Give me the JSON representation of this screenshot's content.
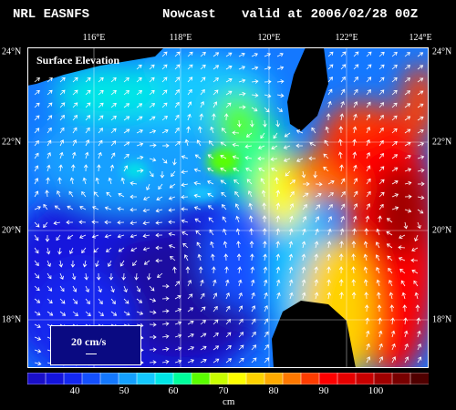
{
  "header": {
    "left": "NRL EASNFS",
    "middle": "Nowcast",
    "right": "valid at 2006/02/28 00Z"
  },
  "map": {
    "panel_label": "Surface Elevation",
    "lon_labels": [
      "116°E",
      "118°E",
      "120°E",
      "122°E",
      "124°E"
    ],
    "lat_labels": [
      "24°N",
      "22°N",
      "20°N",
      "18°N"
    ],
    "lon_range": [
      114.2,
      124
    ],
    "lat_range": [
      16.8,
      24
    ],
    "scale_label": "20 cm/s",
    "land_color": "#000000"
  },
  "colorbar": {
    "tick_labels": [
      "40",
      "50",
      "60",
      "70",
      "80",
      "90",
      "100"
    ],
    "unit": "cm",
    "range": [
      30,
      110
    ],
    "colors": [
      "#1a0fc8",
      "#1414dc",
      "#1428f0",
      "#1450ff",
      "#1478ff",
      "#14a0ff",
      "#14c8ff",
      "#00e6e6",
      "#00ff9c",
      "#5aff00",
      "#c8ff00",
      "#ffff00",
      "#ffd200",
      "#ffaa00",
      "#ff7800",
      "#ff3c00",
      "#ff0000",
      "#e60000",
      "#c80000",
      "#a00000",
      "#780000",
      "#500000"
    ]
  }
}
